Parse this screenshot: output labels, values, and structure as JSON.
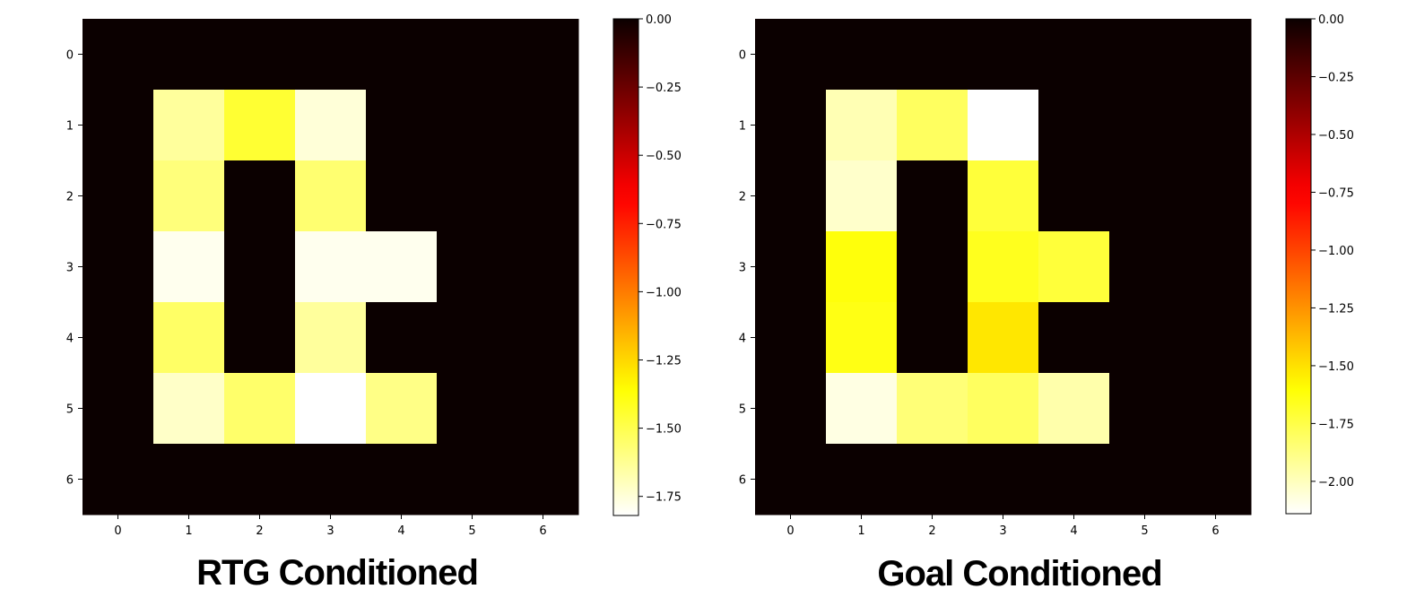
{
  "chart_data": [
    {
      "type": "heatmap",
      "caption": "RTG Conditioned",
      "colormap": "hot",
      "x_ticks": [
        "0",
        "1",
        "2",
        "3",
        "4",
        "5",
        "6"
      ],
      "y_ticks": [
        "0",
        "1",
        "2",
        "3",
        "4",
        "5",
        "6"
      ],
      "colorbar": {
        "vmin": -1.82,
        "vmax": 0.0,
        "ticks": [
          0.0,
          -0.25,
          -0.5,
          -0.75,
          -1.0,
          -1.25,
          -1.5,
          -1.75
        ],
        "tick_labels": [
          "0.00",
          "−0.25",
          "−0.50",
          "−0.75",
          "−1.00",
          "−1.25",
          "−1.50",
          "−1.75"
        ]
      },
      "values": [
        [
          0,
          0,
          0,
          0,
          0,
          0,
          0
        ],
        [
          0,
          -1.64,
          -1.45,
          -1.75,
          0,
          0,
          0
        ],
        [
          0,
          -1.58,
          0,
          -1.56,
          0,
          0,
          0
        ],
        [
          0,
          -1.79,
          0,
          -1.79,
          -1.79,
          0,
          0
        ],
        [
          0,
          -1.54,
          0,
          -1.64,
          0,
          0,
          0
        ],
        [
          0,
          -1.72,
          -1.55,
          -1.82,
          -1.6,
          0,
          0
        ],
        [
          0,
          0,
          0,
          0,
          0,
          0,
          0
        ]
      ]
    },
    {
      "type": "heatmap",
      "caption": "Goal Conditioned",
      "colormap": "hot",
      "x_ticks": [
        "0",
        "1",
        "2",
        "3",
        "4",
        "5",
        "6"
      ],
      "y_ticks": [
        "0",
        "1",
        "2",
        "3",
        "4",
        "5",
        "6"
      ],
      "colorbar": {
        "vmin": -2.14,
        "vmax": 0.0,
        "ticks": [
          0.0,
          -0.25,
          -0.5,
          -0.75,
          -1.0,
          -1.25,
          -1.5,
          -1.75,
          -2.0
        ],
        "tick_labels": [
          "0.00",
          "−0.25",
          "−0.50",
          "−0.75",
          "−1.00",
          "−1.25",
          "−1.50",
          "−1.75",
          "−2.00"
        ]
      },
      "values": [
        [
          0,
          0,
          0,
          0,
          0,
          0,
          0
        ],
        [
          0,
          -1.98,
          -1.8,
          -2.14,
          0,
          0,
          0
        ],
        [
          0,
          -2.03,
          0,
          -1.72,
          0,
          0,
          0
        ],
        [
          0,
          -1.62,
          0,
          -1.66,
          -1.72,
          0,
          0
        ],
        [
          0,
          -1.64,
          0,
          -1.52,
          0,
          0,
          0
        ],
        [
          0,
          -2.08,
          -1.85,
          -1.8,
          -1.96,
          0,
          0
        ],
        [
          0,
          0,
          0,
          0,
          0,
          0,
          0
        ]
      ]
    }
  ]
}
